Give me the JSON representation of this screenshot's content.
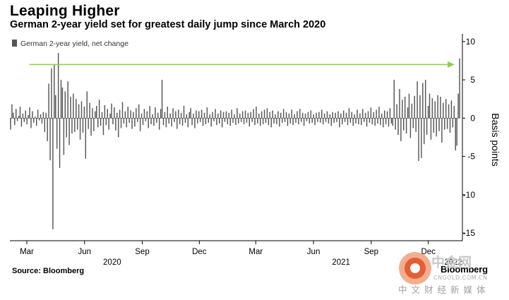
{
  "header": {
    "title": "Leaping Higher",
    "subtitle": "German 2-year yield set for greatest daily jump since March 2020"
  },
  "footer": {
    "source": "Source: Bloomberg",
    "brand": "Bloomberg"
  },
  "watermark": {
    "name": "中金网",
    "url": "CNGOLD.COM.CN",
    "slogan": "中文财经新媒体"
  },
  "colors": {
    "bar": "#555555",
    "arrow": "#8fd14f",
    "axis": "#000000",
    "grid": "#dddddd"
  },
  "chart_data": {
    "type": "bar",
    "legend": "German 2-year yield, net change",
    "legend_position": "top-left",
    "ylabel": "Basis points",
    "ylim": [
      -16,
      11
    ],
    "yticks": [
      10,
      5,
      0,
      -5,
      -10,
      -15
    ],
    "y_axis_side": "right",
    "x_range": [
      "2020-02-03",
      "2022-01-21"
    ],
    "month_ticks": [
      {
        "label": "Mar",
        "date": "2020-03-01"
      },
      {
        "label": "Jun",
        "date": "2020-06-01"
      },
      {
        "label": "Sep",
        "date": "2020-09-01"
      },
      {
        "label": "Dec",
        "date": "2020-12-01"
      },
      {
        "label": "Mar",
        "date": "2021-03-01"
      },
      {
        "label": "Jun",
        "date": "2021-06-01"
      },
      {
        "label": "Sep",
        "date": "2021-09-01"
      },
      {
        "label": "Dec",
        "date": "2021-12-01"
      }
    ],
    "year_labels": [
      {
        "label": "2020",
        "date": "2020-07-15"
      },
      {
        "label": "2021",
        "date": "2021-07-15"
      },
      {
        "label": "2022",
        "date": "2022-01-10"
      }
    ],
    "annotation": {
      "type": "arrow",
      "from": "2020-03-05",
      "to": "2022-01-12",
      "y": 7
    },
    "series": [
      {
        "values": [
          -1.5,
          1.8,
          0.7,
          -0.9,
          1.2,
          -0.4,
          0.3,
          1.5,
          -1.1,
          0.6,
          -0.5,
          1.0,
          -0.8,
          0.4,
          1.4,
          -1.3,
          0.9,
          -0.6,
          0.2,
          -1.0,
          1.1,
          -0.3,
          0.5,
          -0.7,
          0.8,
          -1.8,
          0.7,
          -3.0,
          4.5,
          -5.5,
          6.5,
          -14.5,
          7.0,
          3.0,
          -4.0,
          8.5,
          -6.5,
          5.0,
          4.0,
          -4.8,
          3.5,
          -2.5,
          4.8,
          -3.5,
          2.8,
          -2.0,
          3.2,
          -1.8,
          2.5,
          -1.5,
          1.8,
          -2.8,
          2.2,
          -1.9,
          1.5,
          -5.3,
          3.5,
          -1.4,
          2.0,
          -2.3,
          1.3,
          -1.7,
          0.9,
          1.6,
          -1.2,
          2.4,
          -1.0,
          0.8,
          -2.2,
          1.7,
          -0.9,
          1.2,
          -1.5,
          0.6,
          1.9,
          -0.8,
          1.4,
          -1.6,
          0.7,
          -2.5,
          1.1,
          -1.3,
          2.1,
          -0.7,
          0.9,
          -1.2,
          1.5,
          -0.6,
          1.0,
          -1.4,
          0.8,
          -1.1,
          1.3,
          -0.5,
          1.8,
          -1.7,
          0.6,
          -0.9,
          1.2,
          -0.4,
          0.9,
          -1.3,
          1.6,
          -0.8,
          0.5,
          -1.0,
          1.4,
          -0.6,
          0.7,
          -1.5,
          1.2,
          5.0,
          -0.9,
          0.8,
          -1.2,
          1.5,
          -0.7,
          0.6,
          -1.1,
          1.3,
          -0.5,
          0.9,
          -1.4,
          1.1,
          -0.8,
          0.7,
          -1.0,
          1.6,
          -0.6,
          0.5,
          -1.2,
          0.8,
          1.3,
          -0.9,
          0.6,
          -1.3,
          1.0,
          -0.7,
          0.9,
          -0.5,
          1.1,
          -1.0,
          0.7,
          -0.8,
          1.4,
          -0.6,
          0.5,
          -1.1,
          0.8,
          -0.4,
          1.2,
          -0.9,
          0.6,
          -0.7,
          1.0,
          -1.2,
          0.8,
          -0.5,
          0.9,
          -0.8,
          0.7,
          -1.0,
          1.1,
          -0.6,
          0.5,
          -0.9,
          1.3,
          -0.7,
          0.6,
          -0.5,
          0.9,
          -0.8,
          1.0,
          -0.6,
          0.7,
          -1.1,
          0.8,
          -0.5,
          1.2,
          -0.9,
          1.5,
          -0.7,
          0.6,
          -1.0,
          0.9,
          -0.8,
          1.1,
          -0.6,
          1.3,
          -0.9,
          0.8,
          -1.2,
          1.0,
          -0.7,
          0.5,
          -0.8,
          0.9,
          -1.1,
          0.7,
          -0.6,
          1.2,
          -0.5,
          0.8,
          -1.0,
          0.6,
          -0.7,
          1.1,
          -0.9,
          0.5,
          -0.6,
          0.9,
          -0.8,
          1.2,
          -0.5,
          0.7,
          -1.0,
          0.6,
          -0.4,
          0.8,
          -0.7,
          1.0,
          -0.6,
          0.5,
          -0.9,
          0.7,
          -0.5,
          0.8,
          -0.6,
          1.1,
          -0.8,
          0.6,
          -0.5,
          0.9,
          -0.7,
          0.5,
          -1.0,
          0.8,
          -0.6,
          0.7,
          -0.5,
          0.9,
          -1.2,
          0.6,
          -0.8,
          1.0,
          -0.5,
          0.7,
          -0.9,
          1.3,
          -0.6,
          0.8,
          -1.0,
          0.5,
          -0.7,
          1.1,
          -0.8,
          0.6,
          -0.9,
          1.2,
          -0.5,
          0.7,
          -1.1,
          0.9,
          -0.6,
          1.4,
          -0.8,
          0.8,
          -1.0,
          1.1,
          -0.7,
          1.5,
          -0.9,
          0.6,
          -1.2,
          1.0,
          -0.8,
          0.9,
          -1.1,
          1.3,
          -0.7,
          -1.0,
          5.0,
          -1.5,
          1.8,
          -2.2,
          3.8,
          -3.0,
          2.4,
          -1.6,
          2.8,
          -2.0,
          1.4,
          3.2,
          -2.6,
          1.9,
          -1.3,
          2.9,
          -1.8,
          4.8,
          -5.6,
          3.0,
          -5.2,
          4.6,
          -3.4,
          5.0,
          -2.2,
          1.6,
          3.2,
          -2.8,
          2.6,
          -1.9,
          2.2,
          -2.4,
          3.0,
          -1.7,
          2.8,
          -3.2,
          2.0,
          -1.5,
          2.5,
          -1.4,
          1.8,
          -1.9,
          2.3,
          -1.2,
          1.6,
          -4.2,
          -3.6,
          3.2,
          7.8
        ]
      }
    ]
  }
}
